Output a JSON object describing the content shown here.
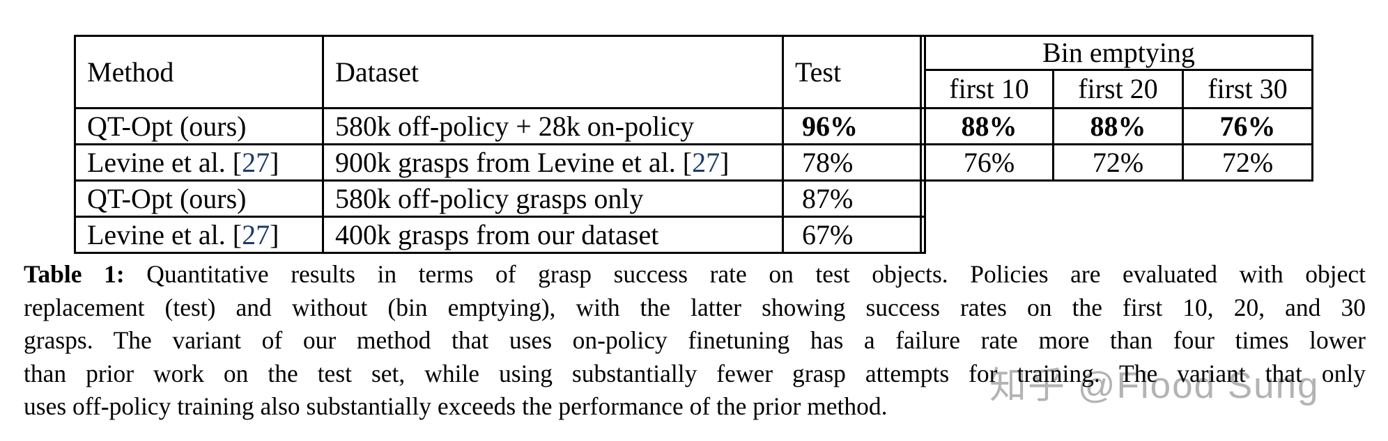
{
  "table": {
    "header": {
      "method": "Method",
      "dataset": "Dataset",
      "test": "Test",
      "bin_emptying": "Bin emptying",
      "first_10": "first 10",
      "first_20": "first 20",
      "first_30": "first 30"
    },
    "rows": [
      {
        "method": {
          "pre": "QT-Opt (ours)",
          "cite": "",
          "post": ""
        },
        "dataset": {
          "pre": "580k off-policy + 28k on-policy",
          "cite": "",
          "post": ""
        },
        "test": "96%",
        "first_10": "88%",
        "first_20": "88%",
        "first_30": "76%"
      },
      {
        "method": {
          "pre": "Levine et al. [",
          "cite": "27",
          "post": "]"
        },
        "dataset": {
          "pre": "900k grasps from Levine et al. [",
          "cite": "27",
          "post": "]"
        },
        "test": "78%",
        "first_10": "76%",
        "first_20": "72%",
        "first_30": "72%"
      },
      {
        "method": {
          "pre": "QT-Opt (ours)",
          "cite": "",
          "post": ""
        },
        "dataset": {
          "pre": "580k off-policy grasps only",
          "cite": "",
          "post": ""
        },
        "test": "87%",
        "first_10": "",
        "first_20": "",
        "first_30": ""
      },
      {
        "method": {
          "pre": "Levine et al. [",
          "cite": "27",
          "post": "]"
        },
        "dataset": {
          "pre": "400k grasps from our dataset",
          "cite": "",
          "post": ""
        },
        "test": "67%",
        "first_10": "",
        "first_20": "",
        "first_30": ""
      }
    ]
  },
  "caption": {
    "label": "Table 1:",
    "lines": [
      " Quantitative results in terms of grasp success rate on test objects. Policies are evaluated with object",
      "replacement (test) and without (bin emptying), with the latter showing success rates on the first 10, 20, and 30",
      "grasps. The variant of our method that uses on-policy finetuning has a failure rate more than four times lower",
      "than prior work on the test set, while using substantially fewer grasp attempts for training. The variant that only",
      "uses off-policy training also substantially exceeds the performance of the prior method."
    ]
  },
  "watermark": "知乎 @Flood Sung",
  "colors": {
    "text": "#000000",
    "citation_link": "#1b3a6b",
    "watermark": "#b3b3b3",
    "table_border": "#000000"
  }
}
